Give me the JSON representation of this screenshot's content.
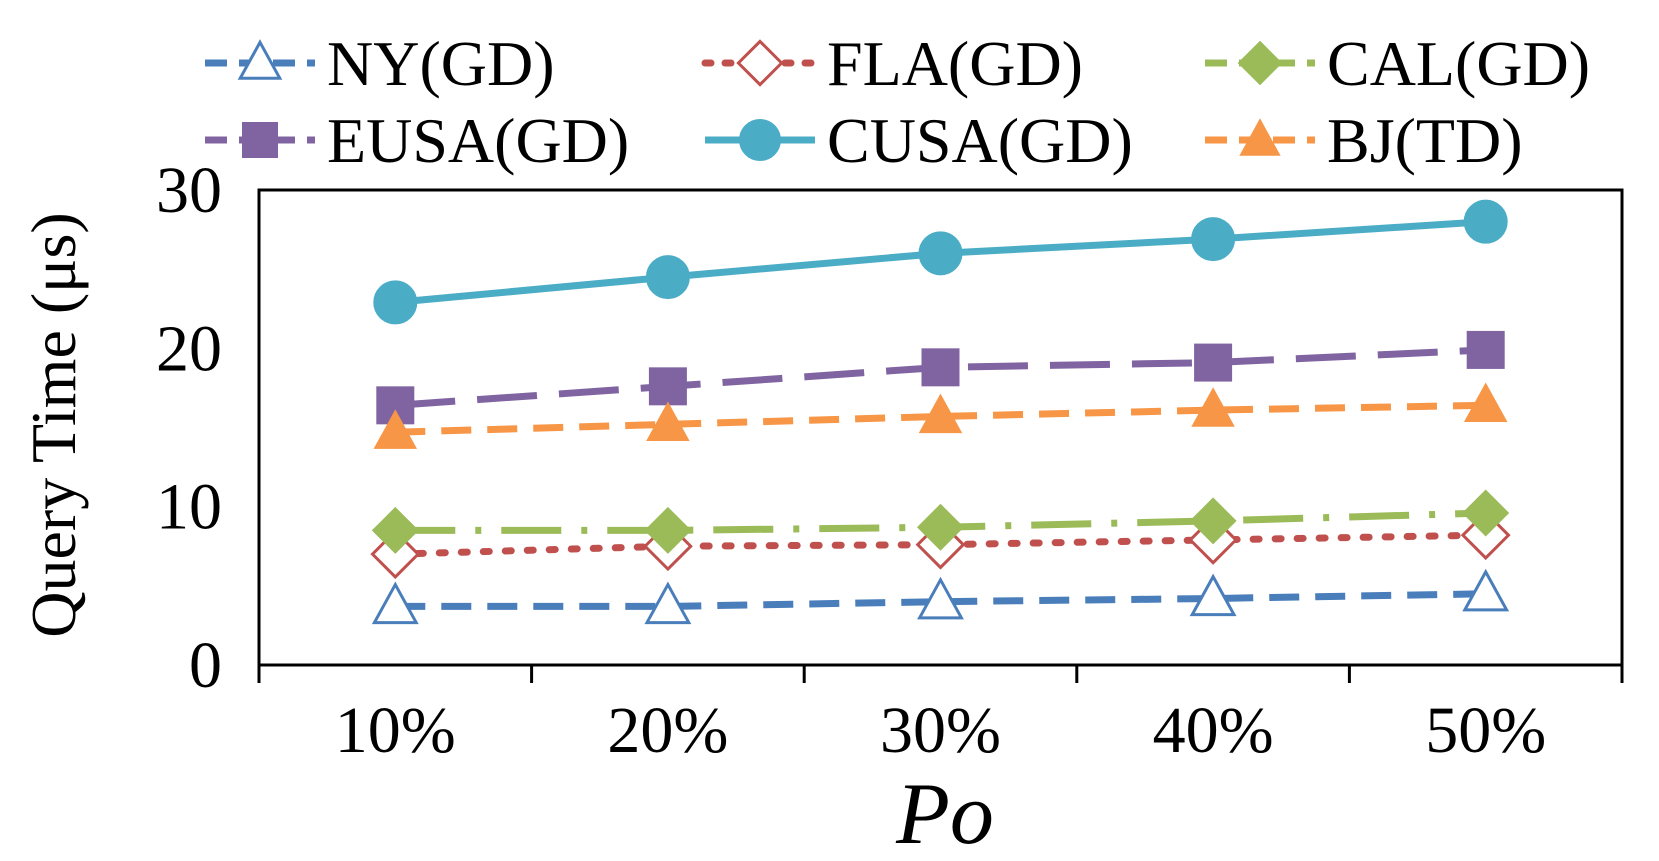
{
  "chart_data": {
    "type": "line",
    "categories": [
      "10%",
      "20%",
      "30%",
      "40%",
      "50%"
    ],
    "xlabel": "Po",
    "ylabel": "Query Time (μs)",
    "ylim": [
      0,
      30
    ],
    "yticks": [
      "0",
      "10",
      "20",
      "30"
    ],
    "grid": false,
    "legend_position": "top",
    "series": [
      {
        "name": "NY(GD)",
        "values": [
          3.7,
          3.7,
          4.0,
          4.2,
          4.5
        ],
        "color": "#4a7ebb",
        "dash": "dashed",
        "marker": "triangle-open"
      },
      {
        "name": "FLA(GD)",
        "values": [
          7.0,
          7.5,
          7.6,
          7.9,
          8.2
        ],
        "color": "#c0504d",
        "dash": "dotted",
        "marker": "diamond-open"
      },
      {
        "name": "CAL(GD)",
        "values": [
          8.5,
          8.5,
          8.7,
          9.1,
          9.6
        ],
        "color": "#9bbb59",
        "dash": "dashdot",
        "marker": "diamond"
      },
      {
        "name": "EUSA(GD)",
        "values": [
          16.4,
          17.6,
          18.8,
          19.1,
          19.9
        ],
        "color": "#8064a2",
        "dash": "longdash",
        "marker": "square"
      },
      {
        "name": "CUSA(GD)",
        "values": [
          22.9,
          24.5,
          26.0,
          26.9,
          28.0
        ],
        "color": "#4bacc6",
        "dash": "solid",
        "marker": "circle"
      },
      {
        "name": "BJ(TD)",
        "values": [
          14.7,
          15.2,
          15.7,
          16.1,
          16.4
        ],
        "color": "#f79646",
        "dash": "dashed",
        "marker": "triangle"
      }
    ]
  }
}
